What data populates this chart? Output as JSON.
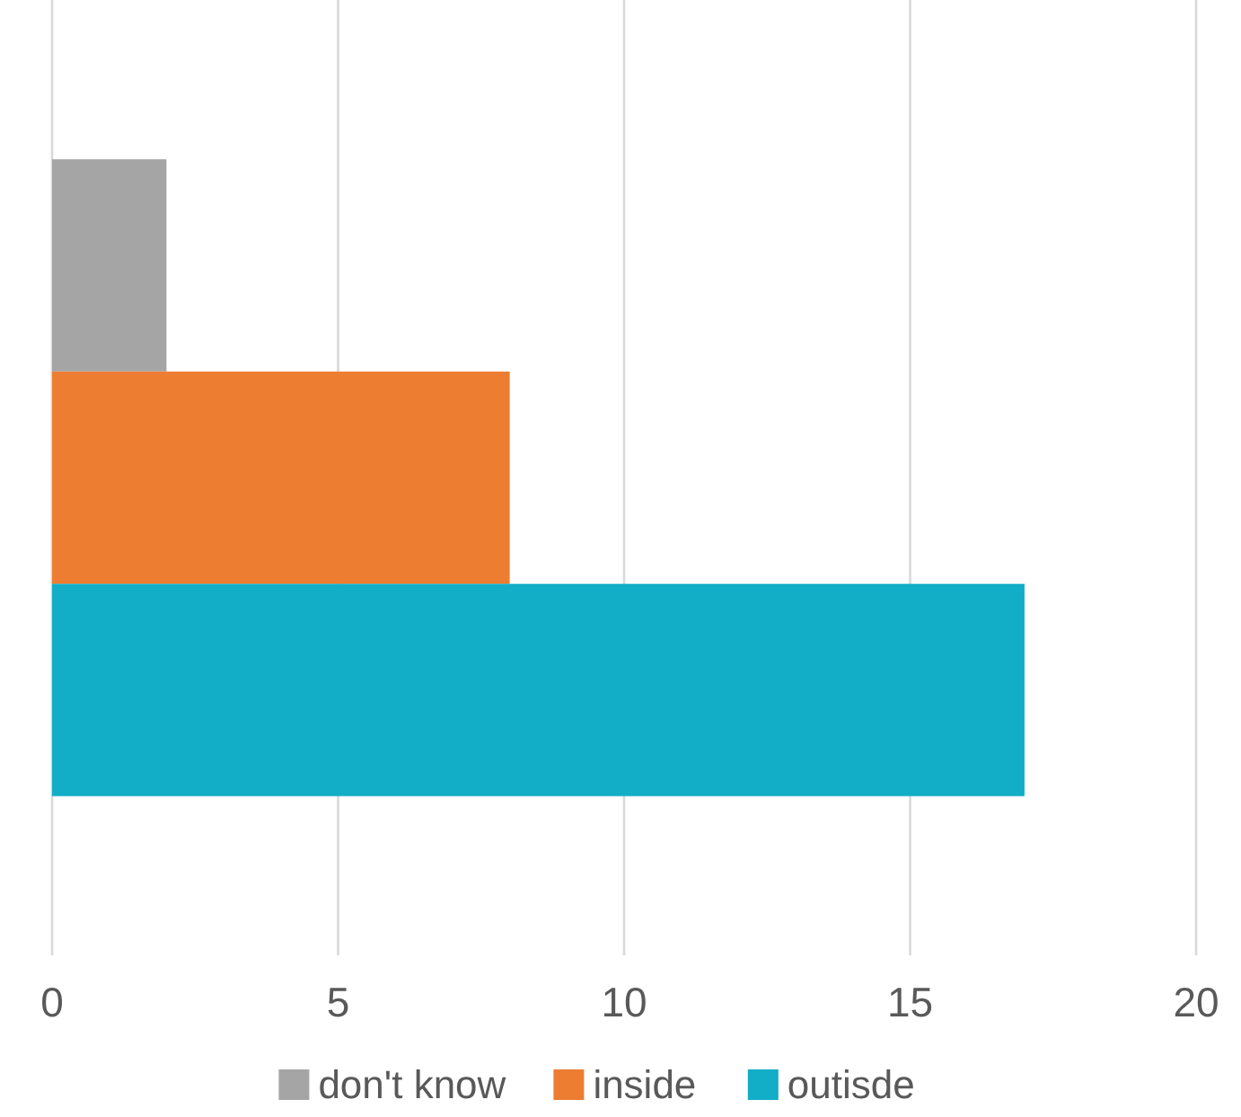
{
  "chart_data": {
    "type": "bar",
    "orientation": "horizontal",
    "categories": [
      null
    ],
    "series": [
      {
        "name": "don't know",
        "color": "#a5a5a5",
        "values": [
          2
        ]
      },
      {
        "name": "inside",
        "color": "#ed7d31",
        "values": [
          8
        ]
      },
      {
        "name": "outisde",
        "color": "#12adc6",
        "values": [
          17
        ]
      }
    ],
    "xlim": [
      0,
      20
    ],
    "xticks": [
      0,
      5,
      10,
      15,
      20
    ],
    "grid": "x",
    "legend": "bottom"
  }
}
